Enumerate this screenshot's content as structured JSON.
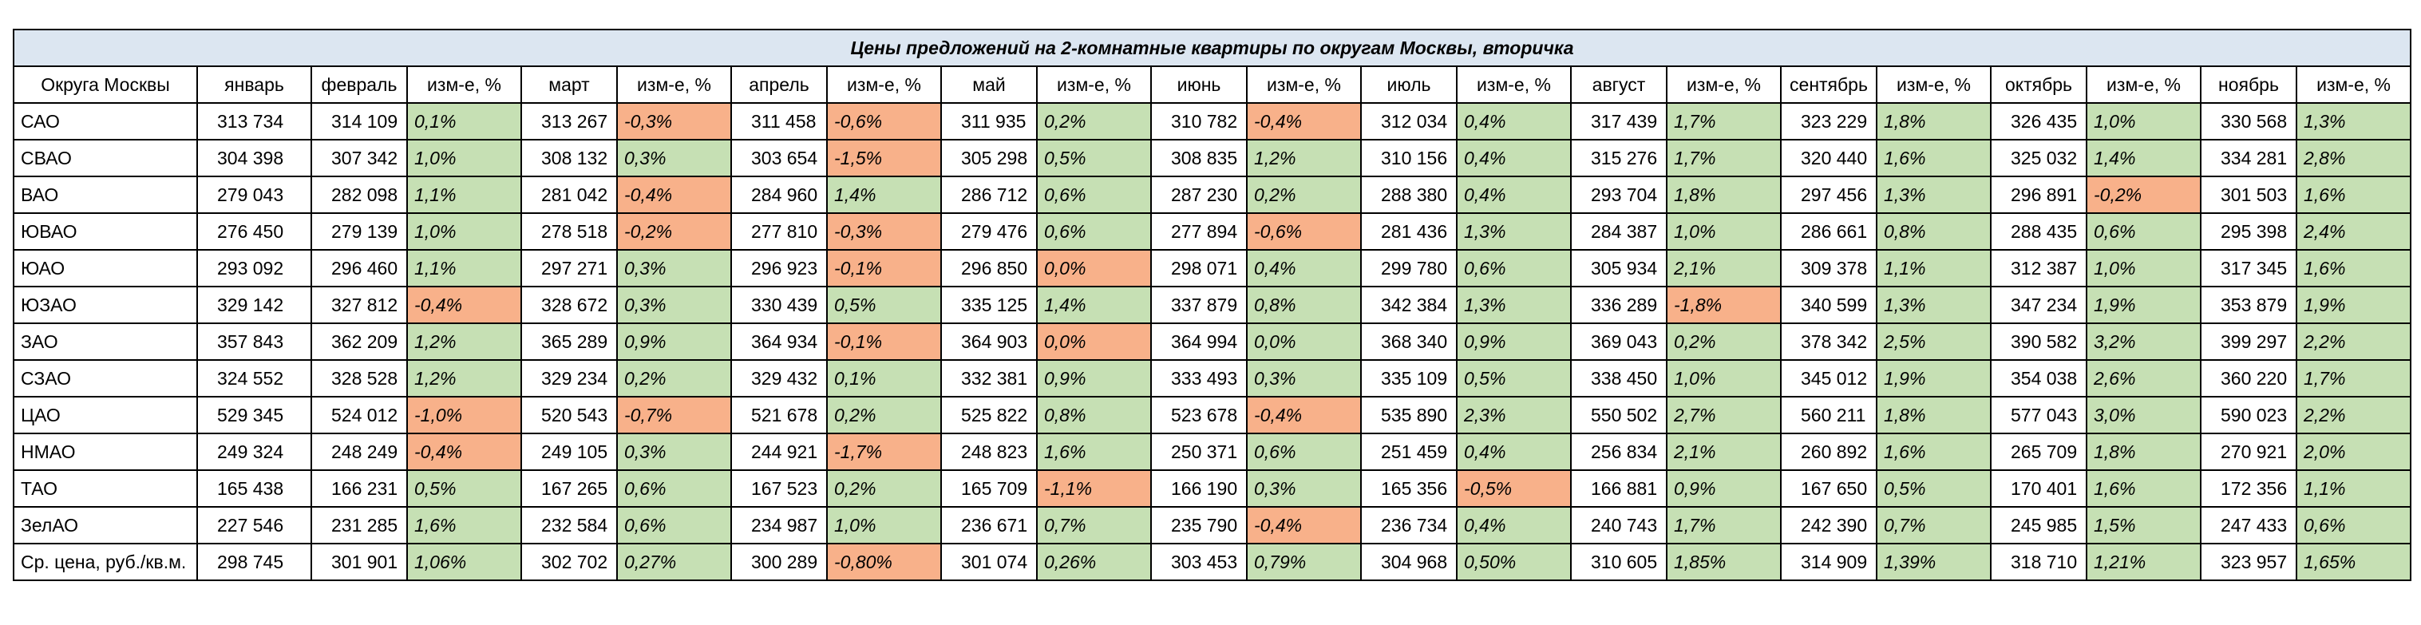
{
  "title": "Цены предложений на 2-комнатные квартиры по округам Москвы, вторичка",
  "fills": {
    "up": "#c6e0b4",
    "down": "#f8b18a"
  },
  "header": [
    "Округа Москвы",
    "январь",
    "февраль",
    "изм-е, %",
    "март",
    "изм-е, %",
    "апрель",
    "изм-е, %",
    "май",
    "изм-е, %",
    "июнь",
    "изм-е, %",
    "июль",
    "изм-е, %",
    "август",
    "изм-е, %",
    "сентябрь",
    "изм-е, %",
    "октябрь",
    "изм-е, %",
    "ноябрь",
    "изм-е, %"
  ],
  "rows": [
    [
      "САО",
      "313 734",
      "314 109",
      {
        "text": "0,1%",
        "fill": "up"
      },
      "313 267",
      {
        "text": "-0,3%",
        "fill": "down"
      },
      "311 458",
      {
        "text": "-0,6%",
        "fill": "down"
      },
      "311 935",
      {
        "text": "0,2%",
        "fill": "up"
      },
      "310 782",
      {
        "text": "-0,4%",
        "fill": "down"
      },
      "312 034",
      {
        "text": "0,4%",
        "fill": "up"
      },
      "317 439",
      {
        "text": "1,7%",
        "fill": "up"
      },
      "323 229",
      {
        "text": "1,8%",
        "fill": "up"
      },
      "326 435",
      {
        "text": "1,0%",
        "fill": "up"
      },
      "330 568",
      {
        "text": "1,3%",
        "fill": "up"
      }
    ],
    [
      "СВАО",
      "304 398",
      "307 342",
      {
        "text": "1,0%",
        "fill": "up"
      },
      "308 132",
      {
        "text": "0,3%",
        "fill": "up"
      },
      "303 654",
      {
        "text": "-1,5%",
        "fill": "down"
      },
      "305 298",
      {
        "text": "0,5%",
        "fill": "up"
      },
      "308 835",
      {
        "text": "1,2%",
        "fill": "up"
      },
      "310 156",
      {
        "text": "0,4%",
        "fill": "up"
      },
      "315 276",
      {
        "text": "1,7%",
        "fill": "up"
      },
      "320 440",
      {
        "text": "1,6%",
        "fill": "up"
      },
      "325 032",
      {
        "text": "1,4%",
        "fill": "up"
      },
      "334 281",
      {
        "text": "2,8%",
        "fill": "up"
      }
    ],
    [
      "ВАО",
      "279 043",
      "282 098",
      {
        "text": "1,1%",
        "fill": "up"
      },
      "281 042",
      {
        "text": "-0,4%",
        "fill": "down"
      },
      "284 960",
      {
        "text": "1,4%",
        "fill": "up"
      },
      "286 712",
      {
        "text": "0,6%",
        "fill": "up"
      },
      "287 230",
      {
        "text": "0,2%",
        "fill": "up"
      },
      "288 380",
      {
        "text": "0,4%",
        "fill": "up"
      },
      "293 704",
      {
        "text": "1,8%",
        "fill": "up"
      },
      "297 456",
      {
        "text": "1,3%",
        "fill": "up"
      },
      "296 891",
      {
        "text": "-0,2%",
        "fill": "down"
      },
      "301 503",
      {
        "text": "1,6%",
        "fill": "up"
      }
    ],
    [
      "ЮВАО",
      "276 450",
      "279 139",
      {
        "text": "1,0%",
        "fill": "up"
      },
      "278 518",
      {
        "text": "-0,2%",
        "fill": "down"
      },
      "277 810",
      {
        "text": "-0,3%",
        "fill": "down"
      },
      "279 476",
      {
        "text": "0,6%",
        "fill": "up"
      },
      "277 894",
      {
        "text": "-0,6%",
        "fill": "down"
      },
      "281 436",
      {
        "text": "1,3%",
        "fill": "up"
      },
      "284 387",
      {
        "text": "1,0%",
        "fill": "up"
      },
      "286 661",
      {
        "text": "0,8%",
        "fill": "up"
      },
      "288 435",
      {
        "text": "0,6%",
        "fill": "up"
      },
      "295 398",
      {
        "text": "2,4%",
        "fill": "up"
      }
    ],
    [
      "ЮАО",
      "293 092",
      "296 460",
      {
        "text": "1,1%",
        "fill": "up"
      },
      "297 271",
      {
        "text": "0,3%",
        "fill": "up"
      },
      "296 923",
      {
        "text": "-0,1%",
        "fill": "down"
      },
      "296 850",
      {
        "text": "0,0%",
        "fill": "down"
      },
      "298 071",
      {
        "text": "0,4%",
        "fill": "up"
      },
      "299 780",
      {
        "text": "0,6%",
        "fill": "up"
      },
      "305 934",
      {
        "text": "2,1%",
        "fill": "up"
      },
      "309 378",
      {
        "text": "1,1%",
        "fill": "up"
      },
      "312 387",
      {
        "text": "1,0%",
        "fill": "up"
      },
      "317 345",
      {
        "text": "1,6%",
        "fill": "up"
      }
    ],
    [
      "ЮЗАО",
      "329 142",
      "327 812",
      {
        "text": "-0,4%",
        "fill": "down"
      },
      "328 672",
      {
        "text": "0,3%",
        "fill": "up"
      },
      "330 439",
      {
        "text": "0,5%",
        "fill": "up"
      },
      "335 125",
      {
        "text": "1,4%",
        "fill": "up"
      },
      "337 879",
      {
        "text": "0,8%",
        "fill": "up"
      },
      "342 384",
      {
        "text": "1,3%",
        "fill": "up"
      },
      "336 289",
      {
        "text": "-1,8%",
        "fill": "down"
      },
      "340 599",
      {
        "text": "1,3%",
        "fill": "up"
      },
      "347 234",
      {
        "text": "1,9%",
        "fill": "up"
      },
      "353 879",
      {
        "text": "1,9%",
        "fill": "up"
      }
    ],
    [
      "ЗАО",
      "357 843",
      "362 209",
      {
        "text": "1,2%",
        "fill": "up"
      },
      "365 289",
      {
        "text": "0,9%",
        "fill": "up"
      },
      "364 934",
      {
        "text": "-0,1%",
        "fill": "down"
      },
      "364 903",
      {
        "text": "0,0%",
        "fill": "down"
      },
      "364 994",
      {
        "text": "0,0%",
        "fill": "up"
      },
      "368 340",
      {
        "text": "0,9%",
        "fill": "up"
      },
      "369 043",
      {
        "text": "0,2%",
        "fill": "up"
      },
      "378 342",
      {
        "text": "2,5%",
        "fill": "up"
      },
      "390 582",
      {
        "text": "3,2%",
        "fill": "up"
      },
      "399 297",
      {
        "text": "2,2%",
        "fill": "up"
      }
    ],
    [
      "СЗАО",
      "324 552",
      "328 528",
      {
        "text": "1,2%",
        "fill": "up"
      },
      "329 234",
      {
        "text": "0,2%",
        "fill": "up"
      },
      "329 432",
      {
        "text": "0,1%",
        "fill": "up"
      },
      "332 381",
      {
        "text": "0,9%",
        "fill": "up"
      },
      "333 493",
      {
        "text": "0,3%",
        "fill": "up"
      },
      "335 109",
      {
        "text": "0,5%",
        "fill": "up"
      },
      "338 450",
      {
        "text": "1,0%",
        "fill": "up"
      },
      "345 012",
      {
        "text": "1,9%",
        "fill": "up"
      },
      "354 038",
      {
        "text": "2,6%",
        "fill": "up"
      },
      "360 220",
      {
        "text": "1,7%",
        "fill": "up"
      }
    ],
    [
      "ЦАО",
      "529 345",
      "524 012",
      {
        "text": "-1,0%",
        "fill": "down"
      },
      "520 543",
      {
        "text": "-0,7%",
        "fill": "down"
      },
      "521 678",
      {
        "text": "0,2%",
        "fill": "up"
      },
      "525 822",
      {
        "text": "0,8%",
        "fill": "up"
      },
      "523 678",
      {
        "text": "-0,4%",
        "fill": "down"
      },
      "535 890",
      {
        "text": "2,3%",
        "fill": "up"
      },
      "550 502",
      {
        "text": "2,7%",
        "fill": "up"
      },
      "560 211",
      {
        "text": "1,8%",
        "fill": "up"
      },
      "577 043",
      {
        "text": "3,0%",
        "fill": "up"
      },
      "590 023",
      {
        "text": "2,2%",
        "fill": "up"
      }
    ],
    [
      "НМАО",
      "249 324",
      "248 249",
      {
        "text": "-0,4%",
        "fill": "down"
      },
      "249 105",
      {
        "text": "0,3%",
        "fill": "up"
      },
      "244 921",
      {
        "text": "-1,7%",
        "fill": "down"
      },
      "248 823",
      {
        "text": "1,6%",
        "fill": "up"
      },
      "250 371",
      {
        "text": "0,6%",
        "fill": "up"
      },
      "251 459",
      {
        "text": "0,4%",
        "fill": "up"
      },
      "256 834",
      {
        "text": "2,1%",
        "fill": "up"
      },
      "260 892",
      {
        "text": "1,6%",
        "fill": "up"
      },
      "265 709",
      {
        "text": "1,8%",
        "fill": "up"
      },
      "270 921",
      {
        "text": "2,0%",
        "fill": "up"
      }
    ],
    [
      "ТАО",
      "165 438",
      "166 231",
      {
        "text": "0,5%",
        "fill": "up"
      },
      "167 265",
      {
        "text": "0,6%",
        "fill": "up"
      },
      "167 523",
      {
        "text": "0,2%",
        "fill": "up"
      },
      "165 709",
      {
        "text": "-1,1%",
        "fill": "down"
      },
      "166 190",
      {
        "text": "0,3%",
        "fill": "up"
      },
      "165 356",
      {
        "text": "-0,5%",
        "fill": "down"
      },
      "166 881",
      {
        "text": "0,9%",
        "fill": "up"
      },
      "167 650",
      {
        "text": "0,5%",
        "fill": "up"
      },
      "170 401",
      {
        "text": "1,6%",
        "fill": "up"
      },
      "172 356",
      {
        "text": "1,1%",
        "fill": "up"
      }
    ],
    [
      "ЗелАО",
      "227 546",
      "231 285",
      {
        "text": "1,6%",
        "fill": "up"
      },
      "232 584",
      {
        "text": "0,6%",
        "fill": "up"
      },
      "234 987",
      {
        "text": "1,0%",
        "fill": "up"
      },
      "236 671",
      {
        "text": "0,7%",
        "fill": "up"
      },
      "235 790",
      {
        "text": "-0,4%",
        "fill": "down"
      },
      "236 734",
      {
        "text": "0,4%",
        "fill": "up"
      },
      "240 743",
      {
        "text": "1,7%",
        "fill": "up"
      },
      "242 390",
      {
        "text": "0,7%",
        "fill": "up"
      },
      "245 985",
      {
        "text": "1,5%",
        "fill": "up"
      },
      "247 433",
      {
        "text": "0,6%",
        "fill": "up"
      }
    ],
    [
      "Ср. цена, руб./кв.м.",
      "298 745",
      "301 901",
      {
        "text": "1,06%",
        "fill": "up"
      },
      "302 702",
      {
        "text": "0,27%",
        "fill": "up"
      },
      "300 289",
      {
        "text": "-0,80%",
        "fill": "down"
      },
      "301 074",
      {
        "text": "0,26%",
        "fill": "up"
      },
      "303 453",
      {
        "text": "0,79%",
        "fill": "up"
      },
      "304 968",
      {
        "text": "0,50%",
        "fill": "up"
      },
      "310 605",
      {
        "text": "1,85%",
        "fill": "up"
      },
      "314 909",
      {
        "text": "1,39%",
        "fill": "up"
      },
      "318 710",
      {
        "text": "1,21%",
        "fill": "up"
      },
      "323 957",
      {
        "text": "1,65%",
        "fill": "up"
      }
    ]
  ]
}
